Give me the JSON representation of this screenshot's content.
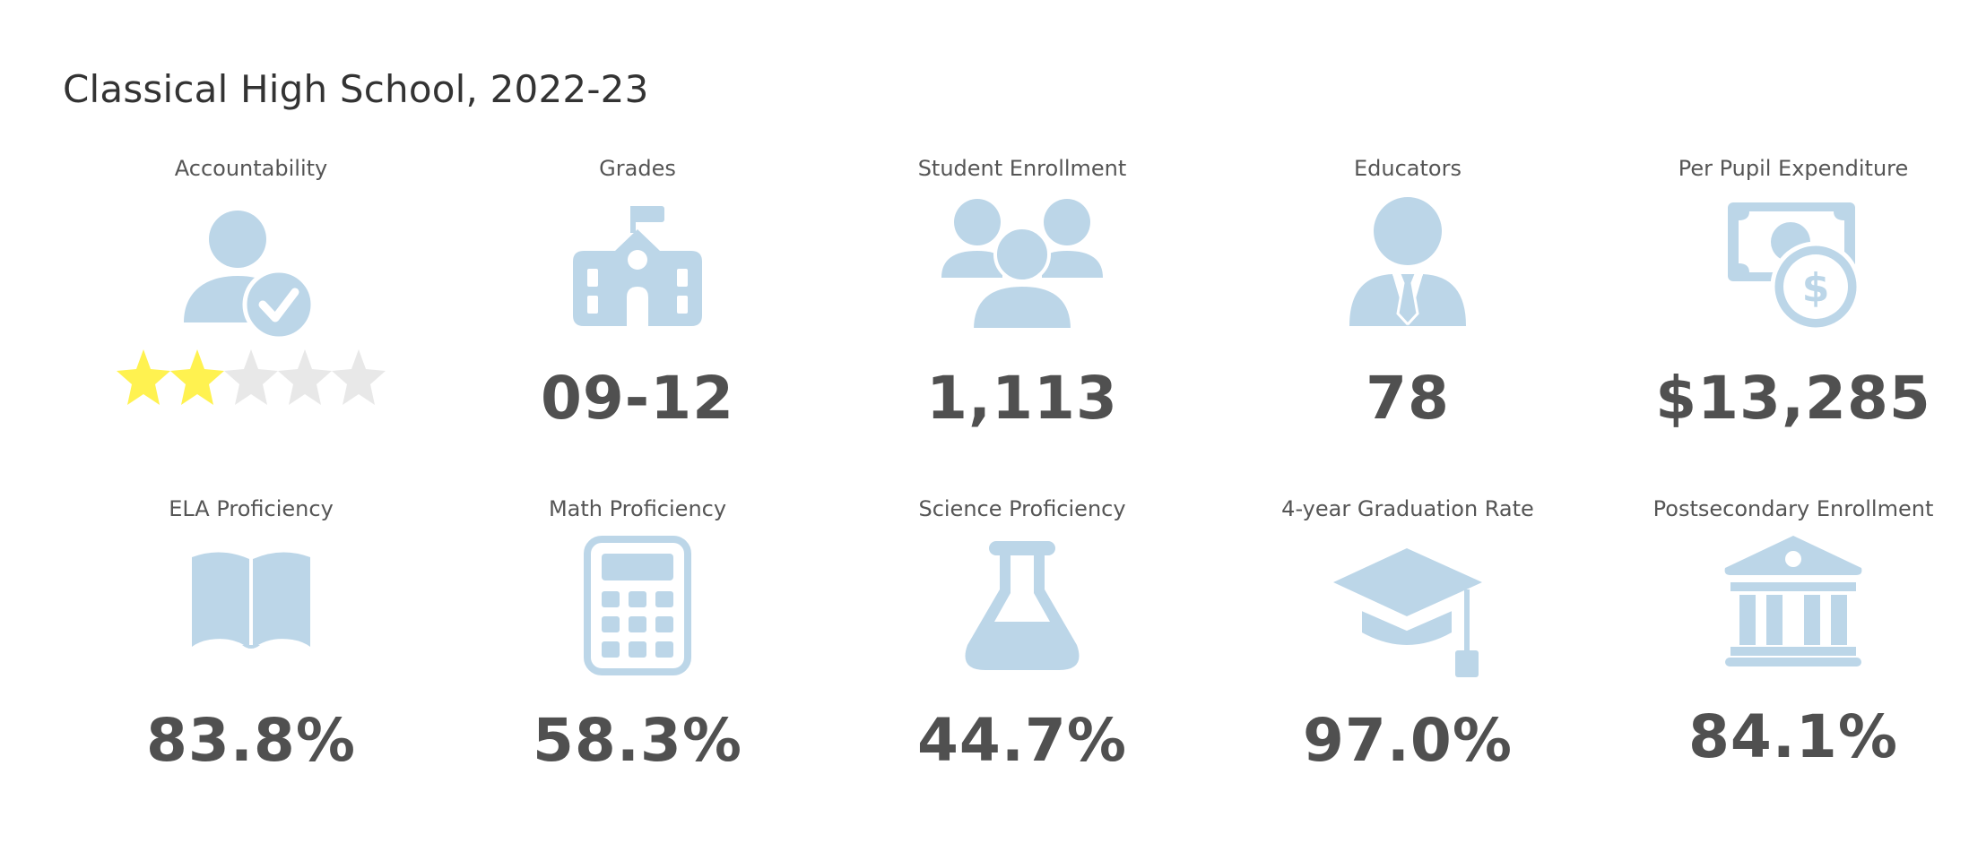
{
  "page": {
    "title": "Classical High School, 2022-23"
  },
  "colors": {
    "icon": "#bcd6e8",
    "value": "#505050",
    "label": "#555555",
    "star_filled": "#fff250",
    "star_empty": "#e8e8e8"
  },
  "tiles": [
    {
      "label": "Accountability",
      "icon": "person-check-icon",
      "rating": 2,
      "rating_max": 5
    },
    {
      "label": "Grades",
      "icon": "school-icon",
      "value": "09-12"
    },
    {
      "label": "Student Enrollment",
      "icon": "group-icon",
      "value": "1,113"
    },
    {
      "label": "Educators",
      "icon": "teacher-icon",
      "value": "78"
    },
    {
      "label": "Per Pupil Expenditure",
      "icon": "money-icon",
      "value": "$13,285"
    },
    {
      "label": "ELA Proficiency",
      "icon": "book-icon",
      "value": "83.8%"
    },
    {
      "label": "Math Proficiency",
      "icon": "calculator-icon",
      "value": "58.3%"
    },
    {
      "label": "Science Proficiency",
      "icon": "flask-icon",
      "value": "44.7%"
    },
    {
      "label": "4-year Graduation Rate",
      "icon": "graduation-cap-icon",
      "value": "97.0%"
    },
    {
      "label": "Postsecondary Enrollment",
      "icon": "institution-icon",
      "value": "84.1%"
    }
  ]
}
